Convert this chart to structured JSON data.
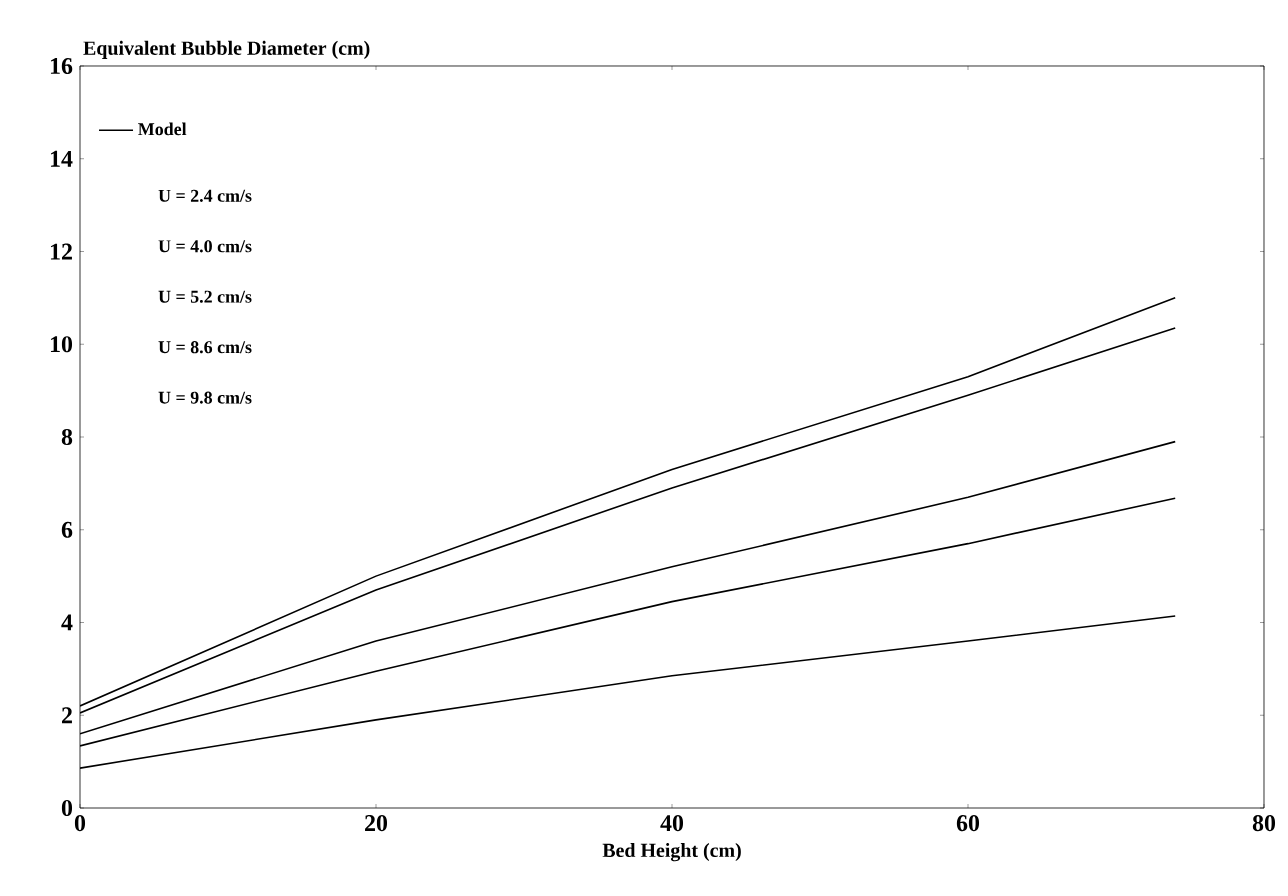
{
  "chart_data": {
    "type": "line",
    "ylabel": "Equivalent Bubble Diameter (cm)",
    "xlabel": "Bed Height (cm)",
    "xlim": [
      0,
      80
    ],
    "xticks": [
      0,
      20,
      40,
      60,
      80
    ],
    "ylim": [
      0,
      16
    ],
    "yticks": [
      0,
      2,
      4,
      6,
      8,
      10,
      12,
      14,
      16
    ],
    "grid": false,
    "legend": "top left",
    "marker": "none",
    "line_style": "solid",
    "x": [
      0,
      20,
      40,
      60,
      74
    ],
    "series": [
      {
        "name": "Model",
        "color": "#000000",
        "values": [
          2.2,
          5.0,
          7.3,
          9.3,
          11.0
        ]
      },
      {
        "color": "#000000",
        "values": [
          2.05,
          4.7,
          6.9,
          8.9,
          10.35
        ]
      },
      {
        "color": "#000000",
        "values": [
          1.6,
          3.6,
          5.2,
          6.7,
          7.9
        ]
      },
      {
        "color": "#000000",
        "values": [
          1.34,
          2.95,
          4.45,
          5.7,
          6.68
        ]
      },
      {
        "color": "#000000",
        "values": [
          0.86,
          1.9,
          2.85,
          3.6,
          4.14
        ]
      }
    ],
    "annotations": [
      "U = 2.4 cm/s",
      "U = 4.0 cm/s",
      "U = 5.2 cm/s",
      "U = 8.6 cm/s",
      "U = 9.8 cm/s"
    ]
  }
}
